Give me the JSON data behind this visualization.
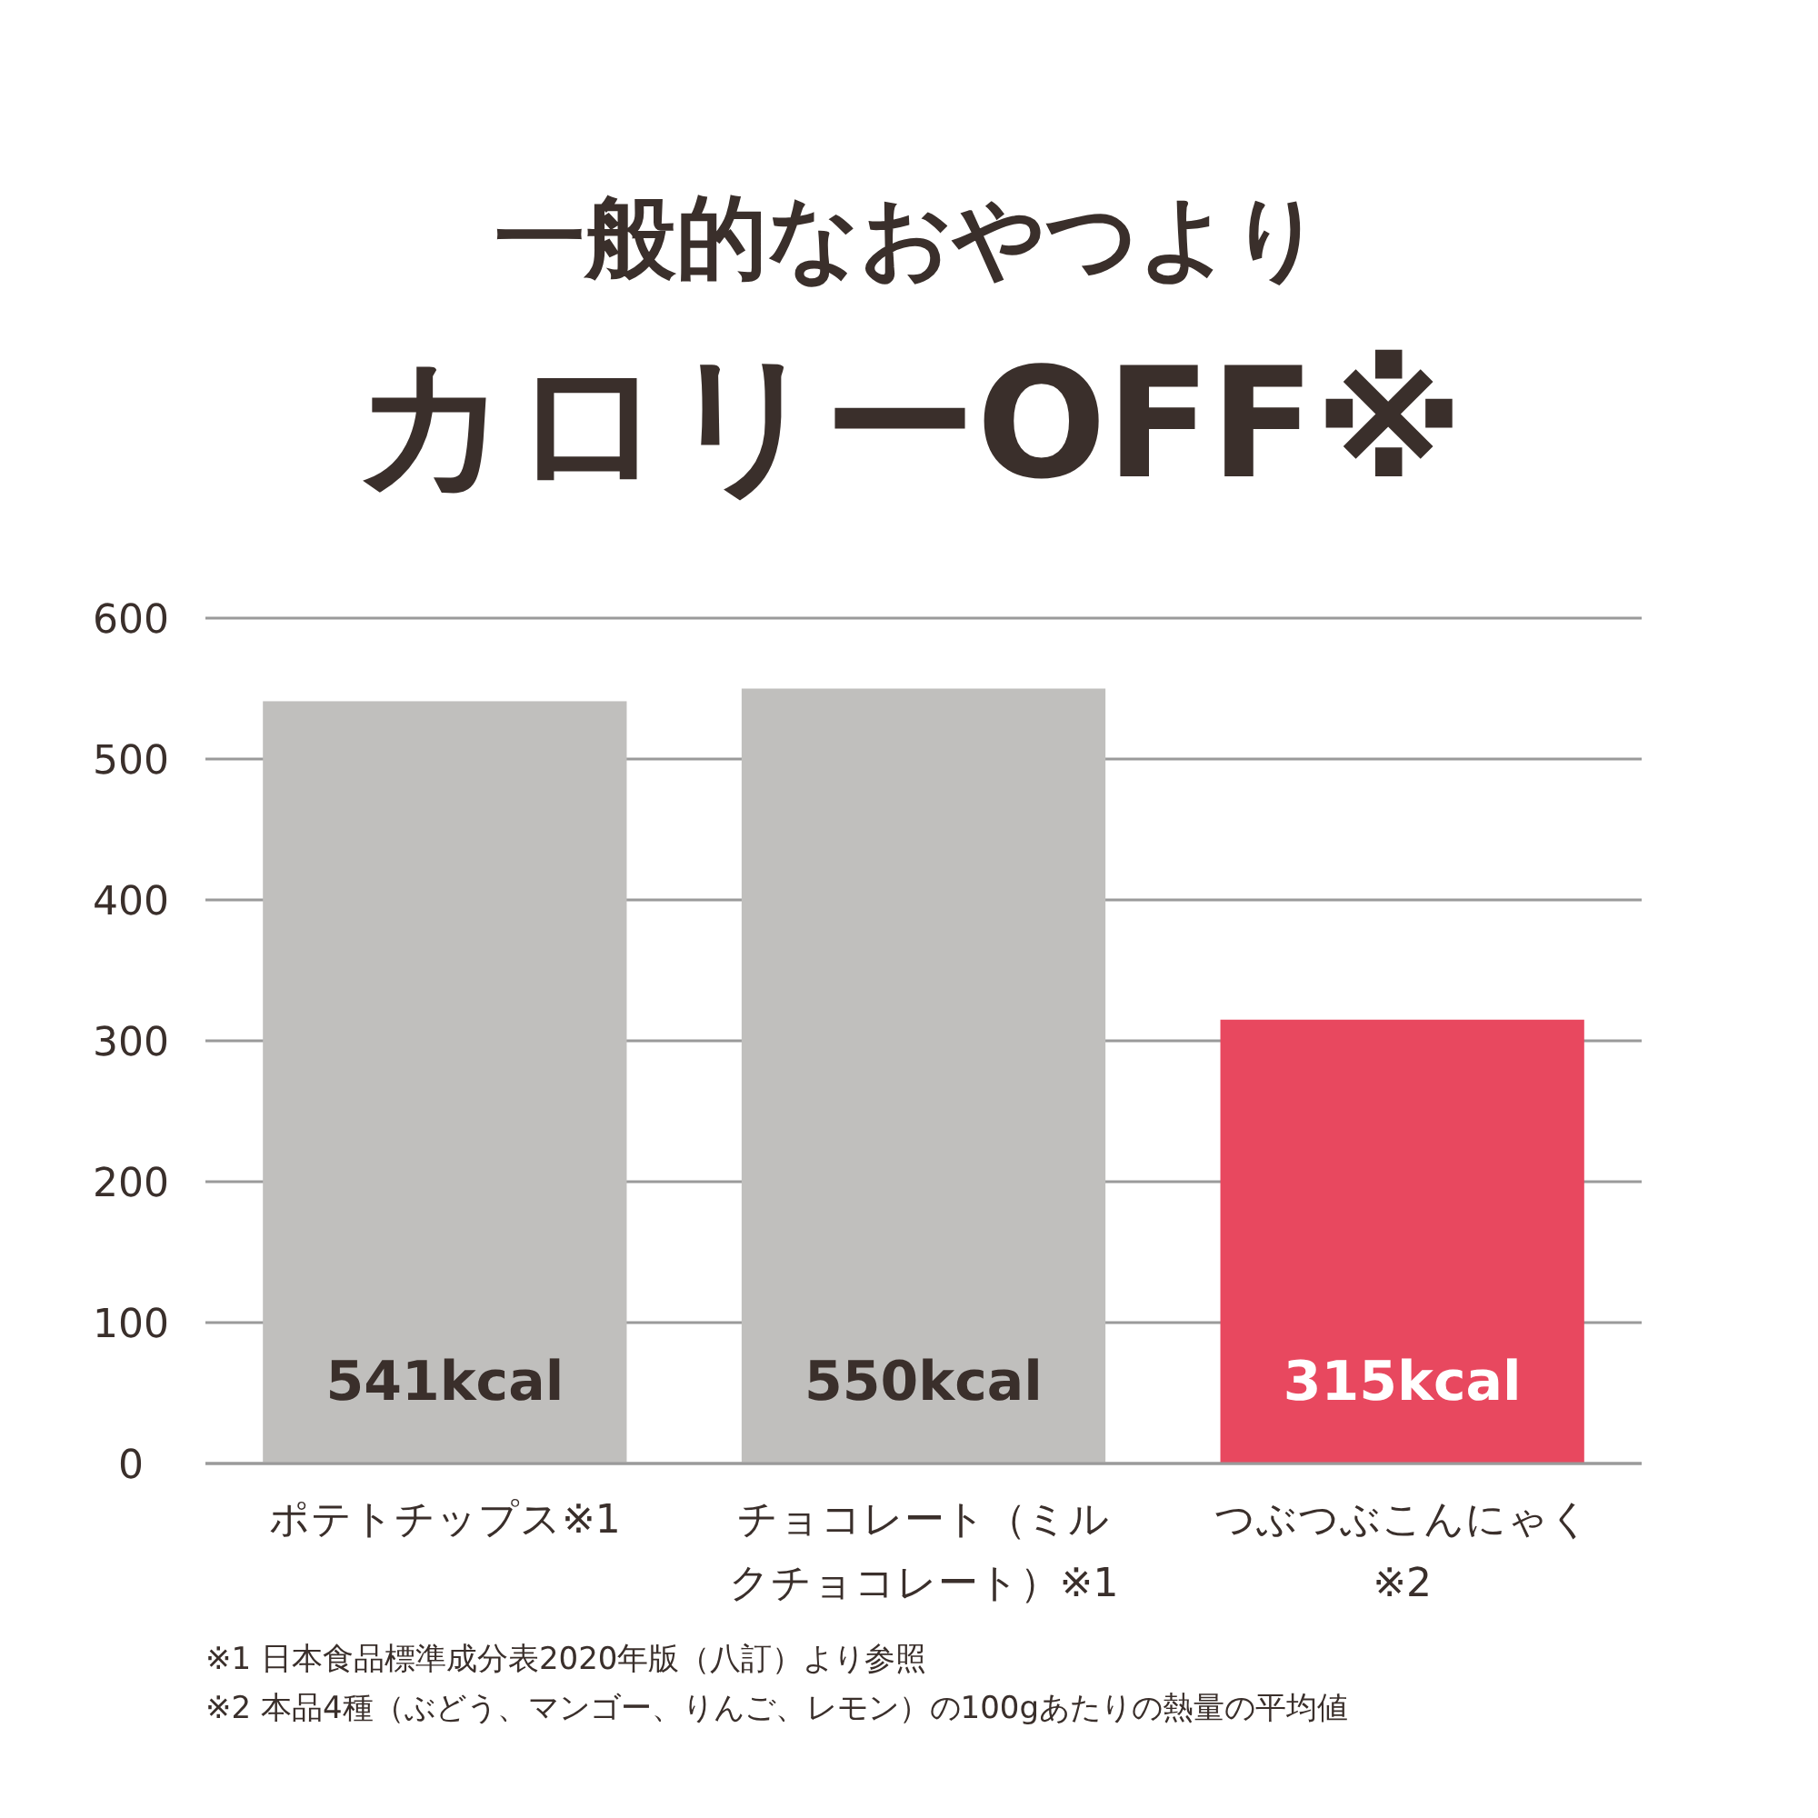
{
  "chart_data": {
    "type": "bar",
    "title": "一般的なおやつより",
    "subtitle": "カロリーOFF※",
    "categories": [
      "ポテトチップス※1",
      "チョコレート（ミルクチョコレート）※1",
      "つぶつぶこんにゃく※2"
    ],
    "values": [
      541,
      550,
      315
    ],
    "colors": [
      "#c0bfbd",
      "#c0bfbd",
      "#e8485f"
    ],
    "value_labels": [
      "541kcal",
      "550kcal",
      "315kcal"
    ],
    "ylim": [
      0,
      600
    ],
    "yticks": [
      0,
      100,
      200,
      300,
      400,
      500,
      600
    ],
    "grid": "y",
    "annotations": [
      "※1 日本食品標準成分表2020年版（八訂）より参照",
      "※2 本品4種（ぶどう、マンゴー、りんご、レモン）の100gあたりの熱量の平均値"
    ]
  }
}
